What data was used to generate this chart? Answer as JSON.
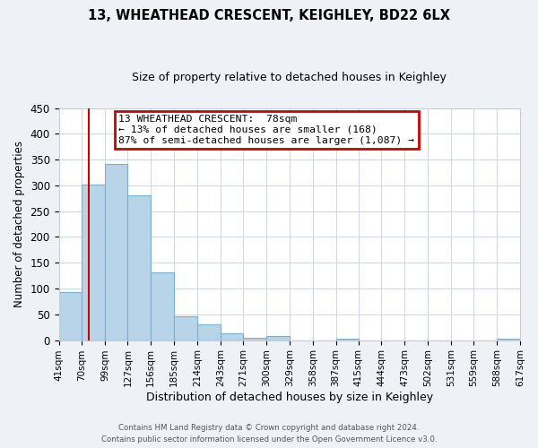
{
  "title": "13, WHEATHEAD CRESCENT, KEIGHLEY, BD22 6LX",
  "subtitle": "Size of property relative to detached houses in Keighley",
  "xlabel": "Distribution of detached houses by size in Keighley",
  "ylabel": "Number of detached properties",
  "bin_labels": [
    "41sqm",
    "70sqm",
    "99sqm",
    "127sqm",
    "156sqm",
    "185sqm",
    "214sqm",
    "243sqm",
    "271sqm",
    "300sqm",
    "329sqm",
    "358sqm",
    "387sqm",
    "415sqm",
    "444sqm",
    "473sqm",
    "502sqm",
    "531sqm",
    "559sqm",
    "588sqm",
    "617sqm"
  ],
  "bin_edges": [
    41,
    70,
    99,
    127,
    156,
    185,
    214,
    243,
    271,
    300,
    329,
    358,
    387,
    415,
    444,
    473,
    502,
    531,
    559,
    588,
    617
  ],
  "bar_heights": [
    93,
    301,
    341,
    280,
    132,
    47,
    30,
    14,
    5,
    8,
    0,
    0,
    2,
    0,
    0,
    0,
    0,
    0,
    0,
    2
  ],
  "bar_color": "#b8d4e8",
  "bar_edge_color": "#7aafd4",
  "property_line_x": 78,
  "property_line_color": "#cc0000",
  "ylim": [
    0,
    450
  ],
  "yticks": [
    0,
    50,
    100,
    150,
    200,
    250,
    300,
    350,
    400,
    450
  ],
  "annotation_title": "13 WHEATHEAD CRESCENT:  78sqm",
  "annotation_line1": "← 13% of detached houses are smaller (168)",
  "annotation_line2": "87% of semi-detached houses are larger (1,087) →",
  "annotation_box_color": "#cc0000",
  "footer1": "Contains HM Land Registry data © Crown copyright and database right 2024.",
  "footer2": "Contains public sector information licensed under the Open Government Licence v3.0.",
  "bg_color": "#eef2f7",
  "plot_bg_color": "#ffffff",
  "grid_color": "#c8d8e8"
}
